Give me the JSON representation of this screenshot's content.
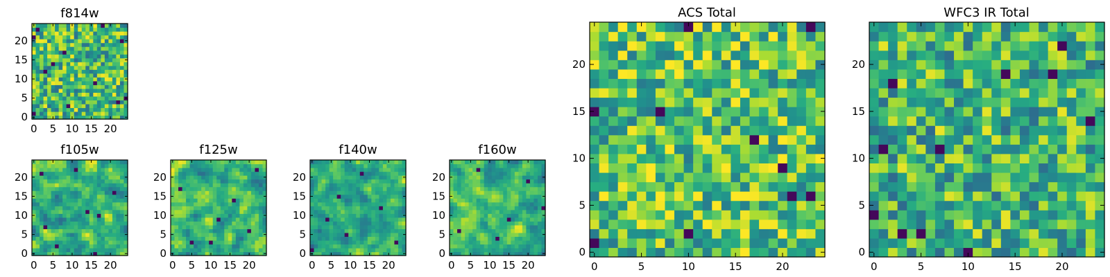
{
  "colormap": "viridis",
  "colors": {
    "low": "#440154",
    "mid_low": "#3b528b",
    "mid": "#21918c",
    "mid_high": "#5ec962",
    "high": "#fde725",
    "frame": "#000000",
    "background": "#ffffff"
  },
  "chart_data": [
    {
      "type": "heatmap",
      "title": "f814w",
      "grid_size": 25,
      "extent": [
        0,
        24,
        0,
        24
      ],
      "xticks": [
        0,
        5,
        10,
        15,
        20
      ],
      "yticks": [
        0,
        5,
        10,
        15,
        20
      ],
      "xlabel": "",
      "ylabel": "",
      "value_range": [
        0,
        1
      ],
      "seed": 11,
      "smoothness": 0,
      "dark_spots": [
        [
          1,
          23
        ],
        [
          23,
          20
        ],
        [
          0,
          21
        ],
        [
          8,
          17
        ],
        [
          5,
          14
        ],
        [
          22,
          4
        ],
        [
          24,
          5
        ],
        [
          0,
          1
        ],
        [
          16,
          9
        ],
        [
          9,
          3
        ],
        [
          3,
          12
        ],
        [
          18,
          24
        ]
      ],
      "mean_level": 0.68
    },
    {
      "type": "heatmap",
      "title": "f105w",
      "grid_size": 25,
      "extent": [
        0,
        24,
        0,
        24
      ],
      "xticks": [
        0,
        5,
        10,
        15,
        20
      ],
      "yticks": [
        0,
        5,
        10,
        15,
        20
      ],
      "xlabel": "",
      "ylabel": "",
      "value_range": [
        0,
        1
      ],
      "seed": 23,
      "smoothness": 1,
      "dark_spots": [
        [
          2,
          21
        ],
        [
          14,
          11
        ],
        [
          17,
          10
        ],
        [
          16,
          0
        ],
        [
          3,
          7
        ],
        [
          21,
          16
        ],
        [
          11,
          22
        ],
        [
          6,
          2
        ]
      ],
      "mean_level": 0.66
    },
    {
      "type": "heatmap",
      "title": "f125w",
      "grid_size": 25,
      "extent": [
        0,
        24,
        0,
        24
      ],
      "xticks": [
        0,
        5,
        10,
        15,
        20
      ],
      "yticks": [
        0,
        5,
        10,
        15,
        20
      ],
      "xlabel": "",
      "ylabel": "",
      "value_range": [
        0,
        1
      ],
      "seed": 37,
      "smoothness": 1,
      "dark_spots": [
        [
          5,
          3
        ],
        [
          10,
          3
        ],
        [
          20,
          6
        ],
        [
          12,
          9
        ],
        [
          22,
          22
        ],
        [
          2,
          17
        ],
        [
          16,
          14
        ]
      ],
      "mean_level": 0.67
    },
    {
      "type": "heatmap",
      "title": "f140w",
      "grid_size": 25,
      "extent": [
        0,
        24,
        0,
        24
      ],
      "xticks": [
        0,
        5,
        10,
        15,
        20
      ],
      "yticks": [
        0,
        5,
        10,
        15,
        20
      ],
      "xlabel": "",
      "ylabel": "",
      "value_range": [
        0,
        1
      ],
      "seed": 41,
      "smoothness": 1,
      "dark_spots": [
        [
          9,
          5
        ],
        [
          0,
          1
        ],
        [
          4,
          9
        ],
        [
          18,
          12
        ],
        [
          13,
          21
        ],
        [
          22,
          3
        ],
        [
          7,
          15
        ]
      ],
      "mean_level": 0.64
    },
    {
      "type": "heatmap",
      "title": "f160w",
      "grid_size": 25,
      "extent": [
        0,
        24,
        0,
        24
      ],
      "xticks": [
        0,
        5,
        10,
        15,
        20
      ],
      "yticks": [
        0,
        5,
        10,
        15,
        20
      ],
      "xlabel": "",
      "ylabel": "",
      "value_range": [
        0,
        1
      ],
      "seed": 53,
      "smoothness": 1,
      "dark_spots": [
        [
          24,
          12
        ],
        [
          2,
          6
        ],
        [
          12,
          4
        ],
        [
          20,
          19
        ],
        [
          7,
          22
        ],
        [
          15,
          9
        ]
      ],
      "mean_level": 0.66
    },
    {
      "type": "heatmap",
      "title": "ACS Total",
      "grid_size": 25,
      "extent": [
        0,
        24,
        0,
        24
      ],
      "xticks": [
        0,
        5,
        10,
        15,
        20
      ],
      "yticks": [
        0,
        5,
        10,
        15,
        20
      ],
      "xlabel": "",
      "ylabel": "",
      "value_range": [
        0,
        1
      ],
      "seed": 67,
      "smoothness": 0,
      "dark_spots": [
        [
          10,
          24
        ],
        [
          23,
          24
        ],
        [
          0,
          15
        ],
        [
          7,
          15
        ],
        [
          21,
          6
        ],
        [
          23,
          6
        ],
        [
          10,
          2
        ],
        [
          0,
          1
        ],
        [
          17,
          12
        ],
        [
          20,
          9
        ]
      ],
      "mean_level": 0.72
    },
    {
      "type": "heatmap",
      "title": "WFC3 IR Total",
      "grid_size": 25,
      "extent": [
        0,
        24,
        0,
        24
      ],
      "xticks": [
        0,
        5,
        10,
        15,
        20
      ],
      "yticks": [
        0,
        5,
        10,
        15,
        20
      ],
      "xlabel": "",
      "ylabel": "",
      "value_range": [
        0,
        1
      ],
      "seed": 79,
      "smoothness": 0,
      "dark_spots": [
        [
          20,
          22
        ],
        [
          14,
          19
        ],
        [
          19,
          19
        ],
        [
          2,
          18
        ],
        [
          23,
          14
        ],
        [
          3,
          2
        ],
        [
          5,
          2
        ],
        [
          10,
          0
        ],
        [
          0,
          4
        ],
        [
          7,
          11
        ],
        [
          1,
          11
        ]
      ],
      "mean_level": 0.66
    }
  ]
}
